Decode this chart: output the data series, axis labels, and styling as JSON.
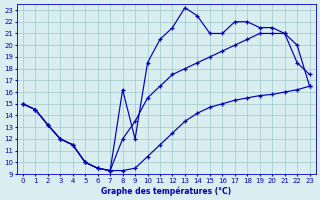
{
  "title": "Graphe des températures (°C)",
  "bg_color": "#d8eef0",
  "line_color": "#0000bb",
  "grid_color": "#a0c8cc",
  "xlim": [
    -0.5,
    23.5
  ],
  "ylim": [
    9,
    23.5
  ],
  "yticks": [
    9,
    10,
    11,
    12,
    13,
    14,
    15,
    16,
    17,
    18,
    19,
    20,
    21,
    22,
    23
  ],
  "xticks": [
    0,
    1,
    2,
    3,
    4,
    5,
    6,
    7,
    8,
    9,
    10,
    11,
    12,
    13,
    14,
    15,
    16,
    17,
    18,
    19,
    20,
    21,
    22,
    23
  ],
  "curve_low_x": [
    0,
    1,
    2,
    3,
    4,
    5,
    6,
    7,
    8,
    9,
    10,
    11,
    12,
    13,
    14,
    15,
    16,
    17,
    18,
    19,
    20,
    21,
    22,
    23
  ],
  "curve_low_y": [
    15,
    14.5,
    13.2,
    12.0,
    11.5,
    10.0,
    9.5,
    9.3,
    9.3,
    9.5,
    10.5,
    11.5,
    12.5,
    13.5,
    14.2,
    14.7,
    15.0,
    15.3,
    15.5,
    15.7,
    15.8,
    16.0,
    16.2,
    16.5
  ],
  "curve_mid_x": [
    0,
    1,
    2,
    3,
    4,
    5,
    6,
    7,
    8,
    9,
    10,
    11,
    12,
    13,
    14,
    15,
    16,
    17,
    18,
    19,
    20,
    21,
    22,
    23
  ],
  "curve_mid_y": [
    15,
    14.5,
    13.2,
    12.0,
    11.5,
    10.0,
    9.5,
    9.3,
    12.0,
    13.5,
    15.5,
    16.5,
    17.5,
    18.0,
    18.5,
    19.0,
    19.5,
    20.0,
    20.5,
    21.0,
    21.0,
    21.0,
    20.0,
    16.5
  ],
  "curve_high_x": [
    0,
    1,
    2,
    3,
    4,
    5,
    6,
    7,
    8,
    9,
    10,
    11,
    12,
    13,
    14,
    15,
    16,
    17,
    18,
    19,
    20,
    21,
    22,
    23
  ],
  "curve_high_y": [
    15,
    14.5,
    13.2,
    12.0,
    11.5,
    10.0,
    9.5,
    9.3,
    16.2,
    12.0,
    18.5,
    20.5,
    21.5,
    23.2,
    22.5,
    21.0,
    21.0,
    22.0,
    22.0,
    21.5,
    21.5,
    21.0,
    18.5,
    17.5
  ]
}
